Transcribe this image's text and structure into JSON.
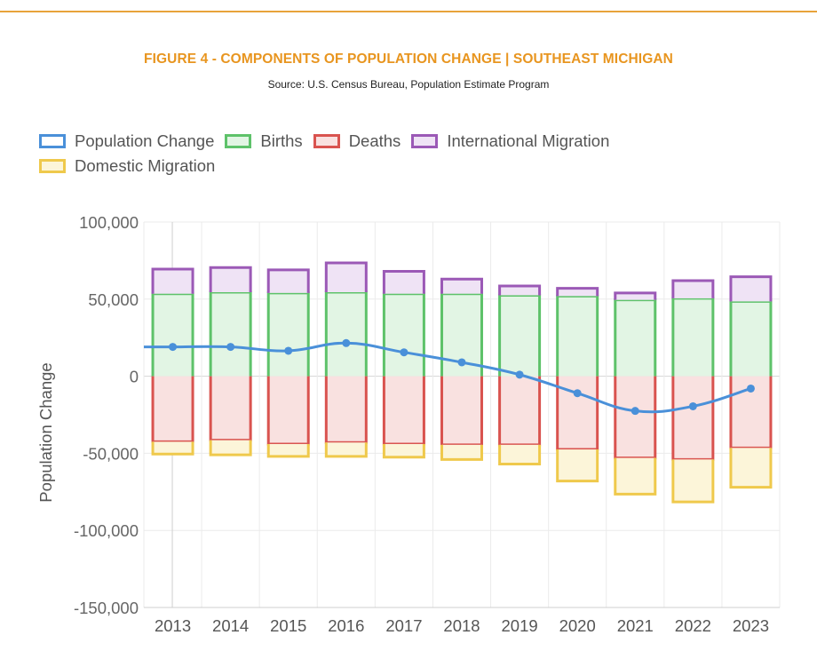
{
  "header": {
    "title": "FIGURE 4 - COMPONENTS OF POPULATION CHANGE | SOUTHEAST MICHIGAN",
    "source": "Source: U.S. Census Bureau, Population Estimate Program"
  },
  "colors": {
    "accent": "#e8951f",
    "population_change": "#4a90d9",
    "births_border": "#5ec26a",
    "births_fill": "#e2f5e4",
    "deaths_border": "#d9534f",
    "deaths_fill": "#f9e1e0",
    "international_border": "#9b59b6",
    "international_fill": "#efe3f5",
    "domestic_border": "#efc94c",
    "domestic_fill": "#fcf5d9"
  },
  "chart_data": {
    "type": "bar",
    "stacked": true,
    "categories": [
      "2013",
      "2014",
      "2015",
      "2016",
      "2017",
      "2018",
      "2019",
      "2020",
      "2021",
      "2022",
      "2023"
    ],
    "series": [
      {
        "name": "Population Change",
        "type": "line",
        "values": [
          19000,
          19000,
          16500,
          21500,
          15500,
          9000,
          1000,
          -11000,
          -22500,
          -19500,
          -8000
        ]
      },
      {
        "name": "Births",
        "type": "bar",
        "values": [
          53500,
          54500,
          54000,
          54500,
          53500,
          53500,
          52500,
          52000,
          49500,
          50500,
          48500
        ]
      },
      {
        "name": "Deaths",
        "type": "bar",
        "values": [
          -42500,
          -41500,
          -44000,
          -43000,
          -44000,
          -44500,
          -44500,
          -47500,
          -53000,
          -54000,
          -46500
        ]
      },
      {
        "name": "International Migration",
        "type": "bar",
        "values": [
          16000,
          16000,
          15000,
          19000,
          14500,
          9500,
          6000,
          5000,
          4500,
          11500,
          16000
        ]
      },
      {
        "name": "Domestic Migration",
        "type": "bar",
        "values": [
          -8000,
          -9500,
          -8000,
          -9000,
          -8500,
          -9500,
          -12500,
          -20500,
          -23500,
          -27500,
          -25500
        ]
      }
    ],
    "yaxis": {
      "label": "Population Change",
      "min": -150000,
      "max": 100000,
      "step": 50000,
      "tick_labels": [
        "100,000",
        "50,000",
        "0",
        "-50,000",
        "-100,000",
        "-150,000"
      ]
    },
    "grid": true,
    "legend_position": "top-left"
  }
}
